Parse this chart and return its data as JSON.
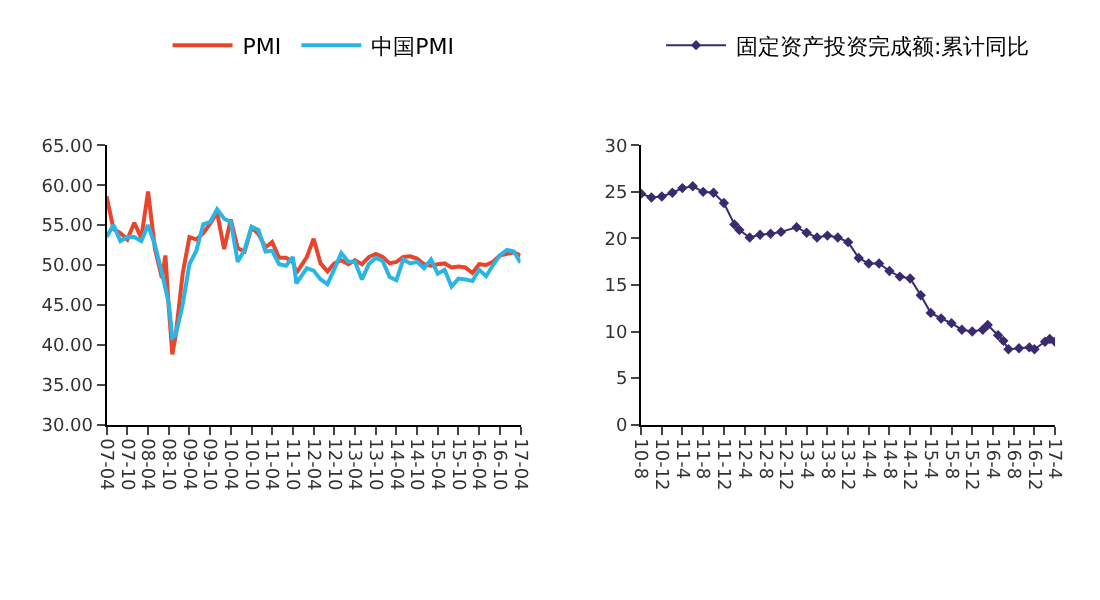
{
  "chart_data": [
    {
      "type": "line",
      "legend": "top",
      "marker": "none",
      "line_style": "solid",
      "xlim": [
        "2007-04",
        "2017-04"
      ],
      "xticks": [
        {
          "value": "2007-04",
          "label": "07-04"
        },
        {
          "value": "2007-10",
          "label": "07-10"
        },
        {
          "value": "2008-04",
          "label": "08-04"
        },
        {
          "value": "2008-10",
          "label": "08-10"
        },
        {
          "value": "2009-04",
          "label": "09-04"
        },
        {
          "value": "2009-10",
          "label": "09-10"
        },
        {
          "value": "2010-04",
          "label": "10-04"
        },
        {
          "value": "2010-10",
          "label": "10-10"
        },
        {
          "value": "2011-04",
          "label": "11-04"
        },
        {
          "value": "2011-10",
          "label": "11-10"
        },
        {
          "value": "2012-04",
          "label": "12-04"
        },
        {
          "value": "2012-10",
          "label": "12-10"
        },
        {
          "value": "2013-04",
          "label": "13-04"
        },
        {
          "value": "2013-10",
          "label": "13-10"
        },
        {
          "value": "2014-04",
          "label": "14-04"
        },
        {
          "value": "2014-10",
          "label": "14-10"
        },
        {
          "value": "2015-04",
          "label": "15-04"
        },
        {
          "value": "2015-10",
          "label": "15-10"
        },
        {
          "value": "2016-04",
          "label": "16-04"
        },
        {
          "value": "2016-10",
          "label": "16-10"
        },
        {
          "value": "2017-04",
          "label": "17-04"
        }
      ],
      "ylim": [
        30,
        65
      ],
      "yticks": [
        {
          "value": 30,
          "label": "30.00"
        },
        {
          "value": 35,
          "label": "35.00"
        },
        {
          "value": 40,
          "label": "40.00"
        },
        {
          "value": 45,
          "label": "45.00"
        },
        {
          "value": 50,
          "label": "50.00"
        },
        {
          "value": 55,
          "label": "55.00"
        },
        {
          "value": 60,
          "label": "60.00"
        },
        {
          "value": 65,
          "label": "65.00"
        }
      ],
      "series": [
        {
          "name": "PMI",
          "color": "#e8452a",
          "x": [
            "2007-04",
            "2007-06",
            "2007-08",
            "2007-10",
            "2007-12",
            "2008-02",
            "2008-04",
            "2008-06",
            "2008-08",
            "2008-09",
            "2008-10",
            "2008-11",
            "2008-12",
            "2009-02",
            "2009-04",
            "2009-06",
            "2009-08",
            "2009-10",
            "2009-12",
            "2010-02",
            "2010-04",
            "2010-06",
            "2010-08",
            "2010-10",
            "2010-12",
            "2011-02",
            "2011-04",
            "2011-06",
            "2011-08",
            "2011-10",
            "2011-11",
            "2012-02",
            "2012-04",
            "2012-06",
            "2012-08",
            "2012-10",
            "2012-12",
            "2013-02",
            "2013-04",
            "2013-06",
            "2013-08",
            "2013-10",
            "2013-12",
            "2014-02",
            "2014-04",
            "2014-06",
            "2014-08",
            "2014-10",
            "2014-12",
            "2015-02",
            "2015-04",
            "2015-06",
            "2015-08",
            "2015-10",
            "2015-12",
            "2016-02",
            "2016-04",
            "2016-06",
            "2016-08",
            "2016-10",
            "2016-12",
            "2017-02",
            "2017-04"
          ],
          "values": [
            58.6,
            54.5,
            54.0,
            53.2,
            55.3,
            53.4,
            59.2,
            52.0,
            48.4,
            51.2,
            44.6,
            38.8,
            41.2,
            49.0,
            53.5,
            53.2,
            54.0,
            55.2,
            56.6,
            52.0,
            55.7,
            52.1,
            51.7,
            54.7,
            53.9,
            52.2,
            52.9,
            50.9,
            50.9,
            50.4,
            49.0,
            51.0,
            53.3,
            50.2,
            49.2,
            50.2,
            50.6,
            50.1,
            50.6,
            50.1,
            51.0,
            51.4,
            51.0,
            50.2,
            50.4,
            51.0,
            51.1,
            50.8,
            50.1,
            49.9,
            50.1,
            50.2,
            49.7,
            49.8,
            49.7,
            49.0,
            50.1,
            50.0,
            50.4,
            51.2,
            51.4,
            51.6,
            51.2
          ]
        },
        {
          "name": "中国PMI",
          "color": "#2bb5e5",
          "x": [
            "2007-04",
            "2007-06",
            "2007-08",
            "2007-10",
            "2007-12",
            "2008-02",
            "2008-04",
            "2008-06",
            "2008-08",
            "2008-10",
            "2008-11",
            "2008-12",
            "2009-02",
            "2009-04",
            "2009-06",
            "2009-08",
            "2009-10",
            "2009-12",
            "2010-02",
            "2010-04",
            "2010-06",
            "2010-08",
            "2010-10",
            "2010-12",
            "2011-02",
            "2011-04",
            "2011-06",
            "2011-08",
            "2011-10",
            "2011-11",
            "2012-02",
            "2012-04",
            "2012-06",
            "2012-08",
            "2012-10",
            "2012-12",
            "2013-02",
            "2013-04",
            "2013-06",
            "2013-08",
            "2013-10",
            "2013-12",
            "2014-02",
            "2014-04",
            "2014-06",
            "2014-08",
            "2014-10",
            "2014-12",
            "2015-02",
            "2015-04",
            "2015-06",
            "2015-08",
            "2015-10",
            "2015-12",
            "2016-02",
            "2016-04",
            "2016-06",
            "2016-08",
            "2016-10",
            "2016-12",
            "2017-02",
            "2017-04"
          ],
          "values": [
            53.5,
            55.0,
            53.0,
            53.5,
            53.5,
            53.0,
            55.0,
            52.5,
            49.0,
            45.2,
            40.9,
            41.2,
            45.1,
            50.1,
            51.8,
            55.1,
            55.4,
            57.0,
            55.8,
            55.4,
            50.4,
            51.9,
            54.8,
            54.4,
            51.7,
            51.8,
            50.1,
            49.9,
            51.0,
            47.7,
            49.6,
            49.3,
            48.2,
            47.6,
            49.5,
            51.5,
            50.4,
            50.4,
            48.2,
            50.1,
            50.9,
            50.5,
            48.5,
            48.1,
            50.7,
            50.2,
            50.4,
            49.6,
            50.7,
            48.9,
            49.4,
            47.3,
            48.3,
            48.2,
            48.0,
            49.4,
            48.6,
            50.0,
            51.2,
            51.9,
            51.7,
            50.3
          ]
        }
      ]
    },
    {
      "type": "line",
      "legend": "top",
      "marker": "diamond",
      "line_style": "solid",
      "xlim": [
        "2010-08",
        "2017-04"
      ],
      "xticks": [
        {
          "value": "2010-08",
          "label": "10-8"
        },
        {
          "value": "2010-12",
          "label": "10-12"
        },
        {
          "value": "2011-04",
          "label": "11-4"
        },
        {
          "value": "2011-08",
          "label": "11-8"
        },
        {
          "value": "2011-12",
          "label": "11-12"
        },
        {
          "value": "2012-04",
          "label": "12-4"
        },
        {
          "value": "2012-08",
          "label": "12-8"
        },
        {
          "value": "2012-12",
          "label": "12-12"
        },
        {
          "value": "2013-04",
          "label": "13-4"
        },
        {
          "value": "2013-08",
          "label": "13-8"
        },
        {
          "value": "2013-12",
          "label": "13-12"
        },
        {
          "value": "2014-04",
          "label": "14-4"
        },
        {
          "value": "2014-08",
          "label": "14-8"
        },
        {
          "value": "2014-12",
          "label": "14-12"
        },
        {
          "value": "2015-04",
          "label": "15-4"
        },
        {
          "value": "2015-08",
          "label": "15-8"
        },
        {
          "value": "2015-12",
          "label": "15-12"
        },
        {
          "value": "2016-04",
          "label": "16-4"
        },
        {
          "value": "2016-08",
          "label": "16-8"
        },
        {
          "value": "2016-12",
          "label": "16-12"
        },
        {
          "value": "2017-04",
          "label": "17-4"
        }
      ],
      "ylim": [
        0,
        30
      ],
      "yticks": [
        0,
        5,
        10,
        15,
        20,
        25,
        30
      ],
      "series": [
        {
          "name": "固定资产投资完成额:累计同比",
          "color": "#3a2a70",
          "x": [
            "2010-08",
            "2010-10",
            "2010-12",
            "2011-02",
            "2011-04",
            "2011-06",
            "2011-08",
            "2011-10",
            "2011-12",
            "2012-02",
            "2012-03",
            "2012-05",
            "2012-07",
            "2012-09",
            "2012-11",
            "2013-02",
            "2013-04",
            "2013-06",
            "2013-08",
            "2013-10",
            "2013-12",
            "2014-02",
            "2014-04",
            "2014-06",
            "2014-08",
            "2014-10",
            "2014-12",
            "2015-02",
            "2015-04",
            "2015-06",
            "2015-08",
            "2015-10",
            "2015-12",
            "2016-02",
            "2016-03",
            "2016-05",
            "2016-06",
            "2016-07",
            "2016-09",
            "2016-11",
            "2016-12",
            "2017-02",
            "2017-03",
            "2017-04"
          ],
          "values": [
            24.8,
            24.4,
            24.5,
            24.9,
            25.4,
            25.6,
            25.0,
            24.9,
            23.8,
            21.5,
            20.9,
            20.1,
            20.4,
            20.5,
            20.7,
            21.2,
            20.6,
            20.1,
            20.3,
            20.1,
            19.6,
            17.9,
            17.3,
            17.3,
            16.5,
            15.9,
            15.7,
            13.9,
            12.0,
            11.4,
            10.9,
            10.2,
            10.0,
            10.2,
            10.7,
            9.6,
            9.0,
            8.1,
            8.2,
            8.3,
            8.1,
            8.9,
            9.2,
            8.9
          ]
        }
      ]
    }
  ]
}
